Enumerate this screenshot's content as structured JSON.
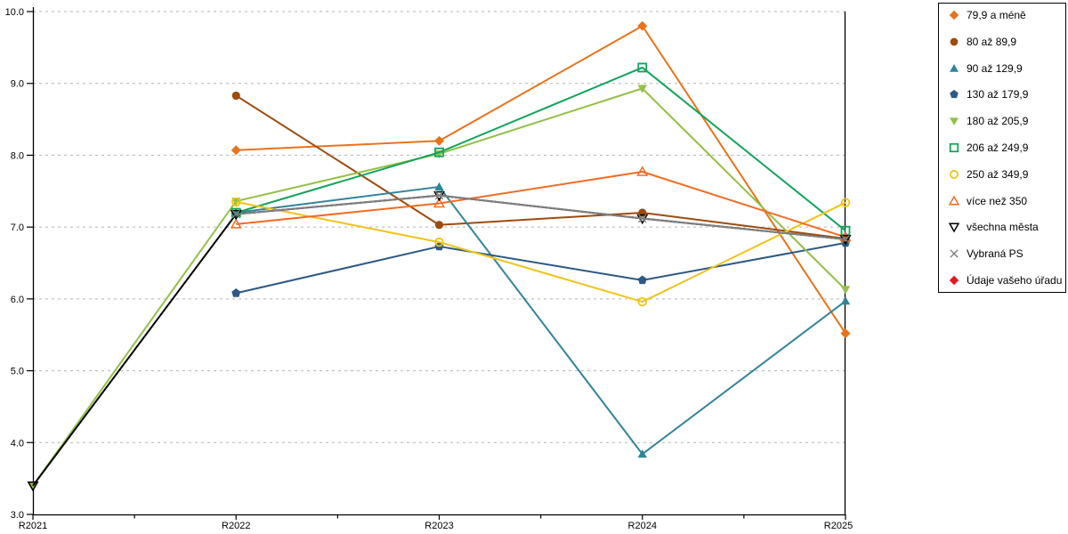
{
  "chart_data": {
    "type": "line",
    "title": "",
    "xlabel": "",
    "ylabel": "",
    "categories": [
      "R2021",
      "R2022",
      "R2023",
      "R2024",
      "R2025"
    ],
    "ylim": [
      3.0,
      10.0
    ],
    "ytick_step": 1.0,
    "yticks": [
      "3.0",
      "4.0",
      "5.0",
      "6.0",
      "7.0",
      "8.0",
      "9.0",
      "10.0"
    ],
    "grid": "horizontal-dashed",
    "x_axis_minor_ticks": true,
    "legend_position": "right",
    "series": [
      {
        "name": "79,9 a méně",
        "color": "#E8731A",
        "marker": "diamond",
        "values": [
          null,
          8.07,
          8.2,
          9.8,
          5.52
        ]
      },
      {
        "name": "80 až 89,9",
        "color": "#9E4B0E",
        "marker": "circle",
        "values": [
          null,
          8.83,
          7.03,
          7.2,
          6.84
        ]
      },
      {
        "name": "90 až 129,9",
        "color": "#31849B",
        "marker": "triangle-up",
        "values": [
          null,
          7.2,
          7.56,
          3.84,
          5.97
        ]
      },
      {
        "name": "130 až 179,9",
        "color": "#2C5985",
        "marker": "pentagon",
        "values": [
          null,
          6.08,
          6.73,
          6.26,
          6.78
        ]
      },
      {
        "name": "180 až 205,9",
        "color": "#94C047",
        "marker": "triangle-down",
        "values": [
          3.4,
          7.36,
          8.02,
          8.93,
          6.13
        ]
      },
      {
        "name": "206 až 249,9",
        "color": "#12A35B",
        "marker": "square-open",
        "values": [
          null,
          7.2,
          8.04,
          9.22,
          6.95
        ]
      },
      {
        "name": "250 až 349,9",
        "color": "#F2C314",
        "marker": "circle-open",
        "values": [
          null,
          7.35,
          6.79,
          5.96,
          7.34
        ]
      },
      {
        "name": "více než 350",
        "color": "#F06C23",
        "marker": "triangle-up-open",
        "values": [
          null,
          7.04,
          7.33,
          7.77,
          6.86
        ]
      },
      {
        "name": "všechna města",
        "color": "#000000",
        "marker": "triangle-down-open",
        "values": [
          3.4,
          7.18,
          7.44,
          7.12,
          6.83
        ]
      },
      {
        "name": "Vybraná PS",
        "color": "#808080",
        "marker": "x",
        "values": [
          null,
          7.18,
          7.44,
          7.12,
          6.83
        ]
      },
      {
        "name": "Údaje vašeho úřadu",
        "color": "#E01A22",
        "marker": "diamond",
        "values": [
          null,
          null,
          null,
          null,
          null
        ]
      }
    ]
  },
  "colors": {
    "background": "#ffffff",
    "grid": "#b3b3b3",
    "axis": "#000000",
    "legend_border": "#000000"
  }
}
